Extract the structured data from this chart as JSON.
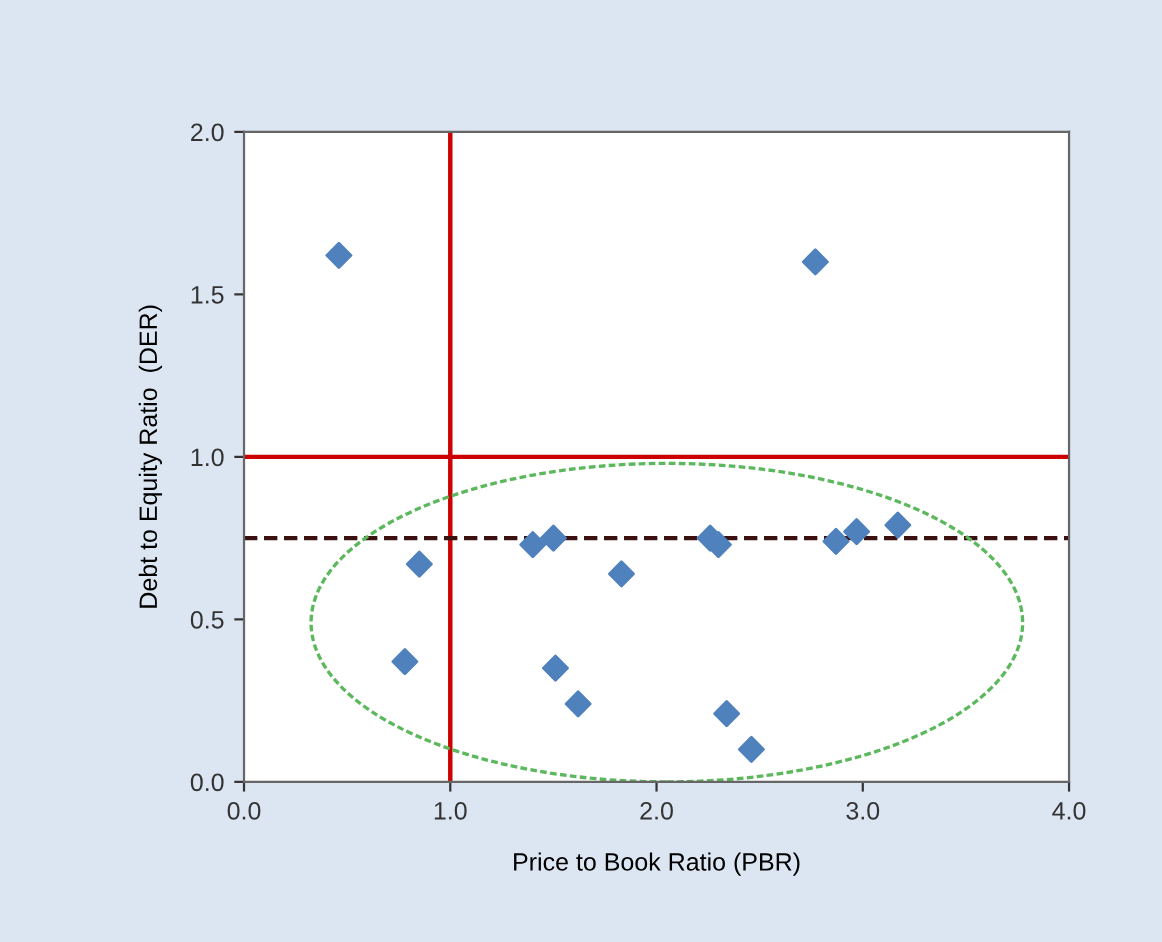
{
  "chart_data": {
    "type": "scatter",
    "xlabel": "Price to Book Ratio (PBR)",
    "ylabel": "Debt to Equity Ratio  (DER)",
    "x": [
      0.46,
      2.77,
      0.85,
      0.78,
      1.4,
      1.5,
      1.51,
      1.62,
      1.83,
      2.26,
      2.3,
      2.34,
      2.46,
      2.87,
      2.97,
      3.17
    ],
    "series": [
      {
        "color": "#4f81bd",
        "values": [
          1.62,
          1.6,
          0.67,
          0.37,
          0.73,
          0.75,
          0.35,
          0.24,
          0.64,
          0.75,
          0.73,
          0.21,
          0.1,
          0.74,
          0.77,
          0.79
        ]
      }
    ],
    "marker": "diamond",
    "grid": false,
    "legend": false,
    "xlim": [
      0,
      4
    ],
    "ylim": [
      0,
      2
    ],
    "xticks": [
      {
        "value": 0,
        "label": "0.0"
      },
      {
        "value": 1,
        "label": "1.0"
      },
      {
        "value": 2,
        "label": "2.0"
      },
      {
        "value": 3,
        "label": "3.0"
      },
      {
        "value": 4,
        "label": "4.0"
      }
    ],
    "yticks": [
      {
        "value": 0,
        "label": "0.0"
      },
      {
        "value": 0.5,
        "label": "0.5"
      },
      {
        "value": 1,
        "label": "1.0"
      },
      {
        "value": 1.5,
        "label": "1.5"
      },
      {
        "value": 2,
        "label": "2.0"
      }
    ],
    "ref_lines": [
      {
        "axis": "x",
        "value": 1,
        "color": "#cc0000",
        "line_style": "solid"
      },
      {
        "axis": "y",
        "value": 1,
        "color": "#cc0000",
        "line_style": "solid"
      },
      {
        "axis": "y",
        "value": 0.75,
        "color": "#3a1010",
        "line_style": "dashed"
      }
    ]
  }
}
